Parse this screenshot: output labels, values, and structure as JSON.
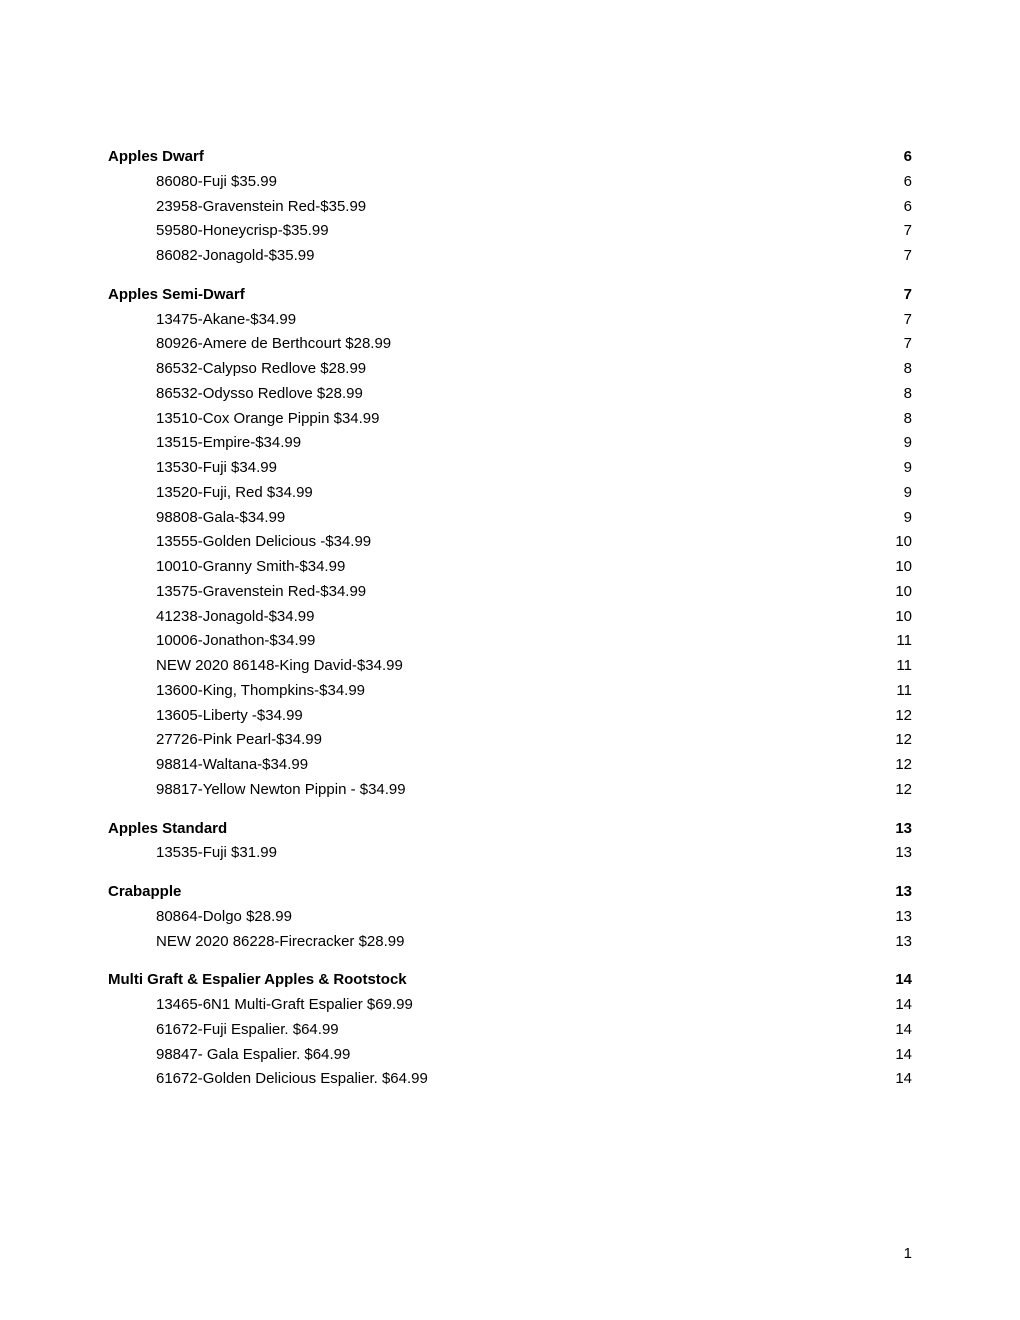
{
  "page_number": "1",
  "sections": [
    {
      "heading": {
        "label": "Apples Dwarf",
        "page": "6"
      },
      "items": [
        {
          "label": "86080-Fuji $35.99",
          "page": "6"
        },
        {
          "label": "23958-Gravenstein Red-$35.99",
          "page": "6"
        },
        {
          "label": "59580-Honeycrisp-$35.99",
          "page": "7"
        },
        {
          "label": "86082-Jonagold-$35.99",
          "page": "7"
        }
      ]
    },
    {
      "heading": {
        "label": "Apples Semi-Dwarf",
        "page": "7"
      },
      "items": [
        {
          "label": "13475-Akane-$34.99",
          "page": "7"
        },
        {
          "label": "80926-Amere de Berthcourt $28.99",
          "page": "7"
        },
        {
          "label": "86532-Calypso Redlove $28.99",
          "page": "8"
        },
        {
          "label": "86532-Odysso Redlove $28.99",
          "page": "8"
        },
        {
          "label": "13510-Cox Orange Pippin $34.99",
          "page": "8"
        },
        {
          "label": "13515-Empire-$34.99",
          "page": "9"
        },
        {
          "label": "13530-Fuji $34.99",
          "page": "9"
        },
        {
          "label": "13520-Fuji, Red $34.99",
          "page": "9"
        },
        {
          "label": "98808-Gala-$34.99",
          "page": "9"
        },
        {
          "label": "13555-Golden Delicious -$34.99",
          "page": "10"
        },
        {
          "label": "10010-Granny Smith-$34.99",
          "page": "10"
        },
        {
          "label": "13575-Gravenstein Red-$34.99",
          "page": "10"
        },
        {
          "label": "41238-Jonagold-$34.99",
          "page": "10"
        },
        {
          "label": "10006-Jonathon-$34.99",
          "page": "11"
        },
        {
          "label": "NEW 2020 86148-King David-$34.99",
          "page": "11"
        },
        {
          "label": "13600-King, Thompkins-$34.99",
          "page": "11"
        },
        {
          "label": "13605-Liberty -$34.99",
          "page": "12"
        },
        {
          "label": "27726-Pink Pearl-$34.99",
          "page": "12"
        },
        {
          "label": "98814-Waltana-$34.99",
          "page": "12"
        },
        {
          "label": "98817-Yellow Newton Pippin - $34.99",
          "page": "12"
        }
      ]
    },
    {
      "heading": {
        "label": "Apples  Standard",
        "page": "13"
      },
      "items": [
        {
          "label": "13535-Fuji $31.99",
          "page": "13"
        }
      ]
    },
    {
      "heading": {
        "label": "Crabapple",
        "page": "13"
      },
      "items": [
        {
          "label": "80864-Dolgo $28.99",
          "page": "13"
        },
        {
          "label": "NEW 2020 86228-Firecracker $28.99",
          "page": "13"
        }
      ]
    },
    {
      "heading": {
        "label": "Multi Graft & Espalier Apples & Rootstock",
        "page": "14"
      },
      "items": [
        {
          "label": "13465-6N1 Multi-Graft Espalier $69.99",
          "page": "14"
        },
        {
          "label": "61672-Fuji Espalier. $64.99",
          "page": "14"
        },
        {
          "label": "98847- Gala Espalier. $64.99",
          "page": "14"
        },
        {
          "label": "61672-Golden Delicious Espalier. $64.99",
          "page": "14"
        }
      ]
    }
  ]
}
